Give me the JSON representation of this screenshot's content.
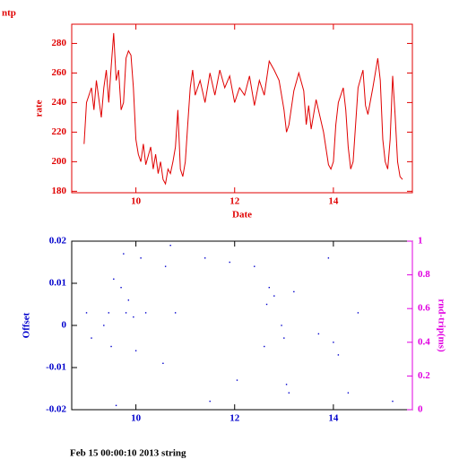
{
  "chart_data": [
    {
      "type": "line",
      "title": "ntp",
      "xlabel": "Date",
      "ylabel": "rate",
      "color": "#e00000",
      "x": [
        8.95,
        9.0,
        9.1,
        9.15,
        9.2,
        9.3,
        9.35,
        9.4,
        9.45,
        9.5,
        9.55,
        9.6,
        9.65,
        9.7,
        9.75,
        9.8,
        9.85,
        9.9,
        9.95,
        10.0,
        10.05,
        10.1,
        10.15,
        10.2,
        10.3,
        10.35,
        10.4,
        10.45,
        10.5,
        10.55,
        10.6,
        10.65,
        10.7,
        10.75,
        10.8,
        10.85,
        10.9,
        10.95,
        11.0,
        11.05,
        11.1,
        11.15,
        11.2,
        11.3,
        11.4,
        11.5,
        11.6,
        11.7,
        11.8,
        11.9,
        12.0,
        12.1,
        12.2,
        12.3,
        12.4,
        12.5,
        12.6,
        12.7,
        12.8,
        12.9,
        13.0,
        13.05,
        13.1,
        13.2,
        13.3,
        13.4,
        13.45,
        13.5,
        13.55,
        13.65,
        13.8,
        13.9,
        13.95,
        14.0,
        14.05,
        14.1,
        14.2,
        14.25,
        14.3,
        14.35,
        14.4,
        14.5,
        14.6,
        14.65,
        14.7,
        14.8,
        14.9,
        14.95,
        15.0,
        15.05,
        15.1,
        15.15,
        15.2,
        15.25,
        15.3,
        15.35,
        15.4
      ],
      "values": [
        212,
        240,
        250,
        235,
        255,
        230,
        250,
        262,
        240,
        265,
        287,
        255,
        262,
        235,
        240,
        270,
        275,
        272,
        250,
        215,
        205,
        200,
        212,
        198,
        210,
        195,
        205,
        192,
        200,
        188,
        185,
        195,
        192,
        200,
        210,
        235,
        195,
        190,
        200,
        225,
        250,
        262,
        245,
        255,
        240,
        260,
        245,
        262,
        250,
        258,
        240,
        250,
        245,
        258,
        238,
        255,
        245,
        268,
        262,
        255,
        235,
        220,
        225,
        248,
        260,
        248,
        225,
        238,
        222,
        242,
        220,
        198,
        195,
        200,
        225,
        240,
        250,
        235,
        210,
        195,
        200,
        250,
        262,
        238,
        232,
        250,
        270,
        255,
        215,
        200,
        195,
        215,
        258,
        232,
        200,
        190,
        188
      ],
      "xlim": [
        8.7,
        15.6
      ],
      "ylim": [
        179,
        293
      ],
      "xticks": [
        10,
        12,
        14
      ],
      "yticks": [
        180,
        200,
        220,
        240,
        260,
        280
      ]
    },
    {
      "type": "scatter",
      "ylabel": "Offset",
      "y2label": "rnd-trip(ms)",
      "color": "#0000cc",
      "x": [
        9.0,
        9.1,
        9.35,
        9.45,
        9.5,
        9.55,
        9.7,
        9.75,
        9.8,
        9.85,
        9.95,
        10.0,
        10.1,
        10.2,
        10.55,
        10.6,
        10.7,
        10.8,
        11.4,
        11.5,
        11.9,
        12.05,
        12.4,
        12.6,
        12.65,
        12.8,
        12.95,
        13.0,
        13.05,
        13.1,
        13.2,
        13.7,
        13.9,
        14.0,
        14.1,
        14.3,
        14.5,
        15.2,
        9.6,
        12.7
      ],
      "values": [
        0.003,
        -0.003,
        0.0,
        0.003,
        -0.005,
        0.011,
        0.009,
        0.017,
        0.003,
        0.006,
        0.002,
        -0.006,
        0.016,
        0.003,
        -0.009,
        0.014,
        0.019,
        0.003,
        0.016,
        -0.018,
        0.015,
        -0.013,
        0.014,
        -0.005,
        0.005,
        0.007,
        0.0,
        -0.003,
        -0.014,
        -0.016,
        0.008,
        -0.002,
        0.016,
        -0.004,
        -0.007,
        -0.016,
        0.003,
        -0.018,
        -0.019,
        0.009
      ],
      "xlim": [
        8.7,
        15.6
      ],
      "ylim": [
        -0.02,
        0.02
      ],
      "xticks": [
        10,
        12,
        14
      ],
      "yticks": [
        -0.02,
        -0.01,
        0,
        0.01,
        0.02
      ],
      "y2lim": [
        0,
        1
      ],
      "y2ticks": [
        0,
        0.2,
        0.4,
        0.6,
        0.8,
        1
      ]
    }
  ],
  "footer": "Feb 15 00:00:10 2013 string"
}
